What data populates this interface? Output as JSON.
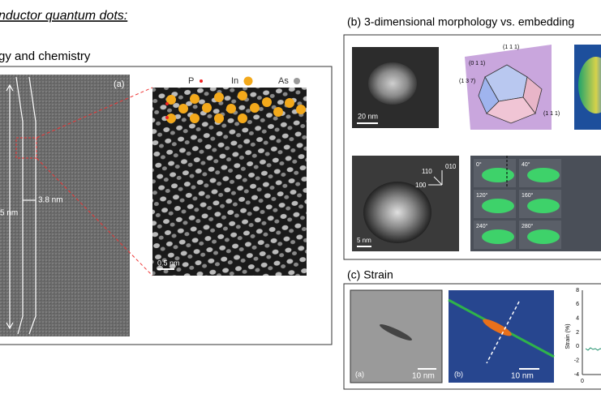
{
  "header": {
    "title": "nductor quantum dots:",
    "subtitle": "gy and chemistry"
  },
  "panel_a": {
    "label": "(a)",
    "width_label": "3.8 nm",
    "height_label": "5 nm",
    "legend": [
      "P",
      "In",
      "As"
    ],
    "scale": "0.5 nm"
  },
  "panel_b": {
    "title": "(b) 3-dimensional morphology vs. embedding",
    "scale_1": "20 nm",
    "facets": [
      "(0 1 1)",
      "(1 1 1)",
      "(1 3 7)",
      "(1 1 1)"
    ],
    "directions": [
      "110",
      "010",
      "100"
    ],
    "scale_2": "5 nm",
    "angles": [
      "0°",
      "40°",
      "120°",
      "160°",
      "240°",
      "280°"
    ]
  },
  "panel_c": {
    "title": "(c) Strain",
    "image_a": "(a)",
    "scale_a": "10 nm",
    "image_b": "(b)",
    "scale_b": "10 nm",
    "y_label": "Strain (%)",
    "yticks": [
      "8",
      "6",
      "4",
      "2",
      "0",
      "-2",
      "-4"
    ],
    "xtick": "0"
  }
}
